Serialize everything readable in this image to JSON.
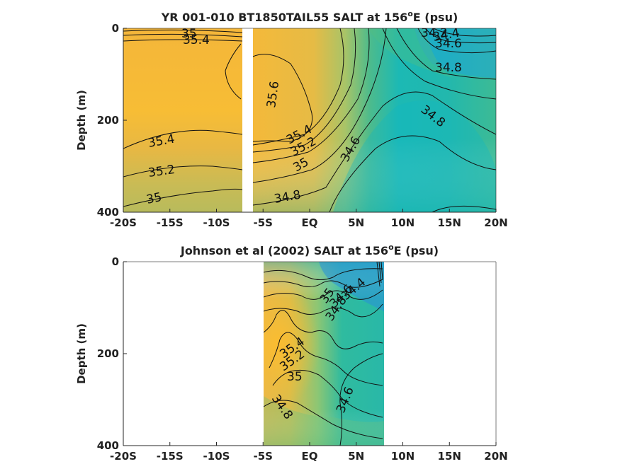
{
  "chart_data": [
    {
      "type": "heatmap",
      "title_main": "YR 001-010 BT1850TAIL55 SALT at 156",
      "title_sup": "o",
      "title_tail": "E (psu)",
      "ylabel": "Depth (m)",
      "x_ticks": [
        "-20S",
        "-15S",
        "-10S",
        "-5S",
        "EQ",
        "5N",
        "10N",
        "15N",
        "20N"
      ],
      "y_ticks": [
        "0",
        "200",
        "400"
      ],
      "xlim": [
        -20,
        20
      ],
      "ylim": [
        0,
        400
      ],
      "data_gap_x": [
        -7.0,
        -6.2
      ],
      "colormap": "parula",
      "contour_labels": [
        "35",
        "35.4",
        "35.2",
        "35.6",
        "35.4",
        "35.2",
        "35",
        "34.8",
        "35.4",
        "35.2",
        "35",
        "34.8",
        "34.6",
        "34.8",
        "34.8",
        "34.2",
        "34.4",
        "34.6"
      ]
    },
    {
      "type": "heatmap",
      "title_main": "Johnson et al (2002) SALT at 156",
      "title_sup": "o",
      "title_tail": "E (psu)",
      "ylabel": "Depth (m)",
      "x_ticks": [
        "-20S",
        "-15S",
        "-10S",
        "-5S",
        "EQ",
        "5N",
        "10N",
        "15N",
        "20N"
      ],
      "y_ticks": [
        "0",
        "200",
        "400"
      ],
      "xlim": [
        -20,
        20
      ],
      "ylim": [
        0,
        400
      ],
      "data_x_range": [
        -5,
        8
      ],
      "colormap": "parula",
      "contour_labels": [
        "35",
        "34.4",
        "34.6",
        "34.8",
        "35.4",
        "35.2",
        "35",
        "34.8",
        "34.6"
      ]
    }
  ]
}
